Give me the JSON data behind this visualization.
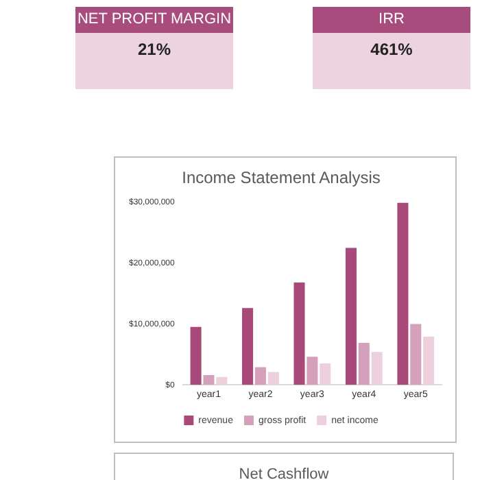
{
  "chart_data": [
    {
      "type": "other",
      "title": "NET PROFIT MARGIN",
      "annotations": [
        "21%"
      ]
    },
    {
      "type": "other",
      "title": "IRR",
      "annotations": [
        "461%"
      ]
    },
    {
      "type": "bar",
      "title": "Income Statement Analysis",
      "categories": [
        "year1",
        "year2",
        "year3",
        "year4",
        "year5"
      ],
      "series": [
        {
          "name": "revenue",
          "color": "#a8497a",
          "values": [
            9500000,
            12600000,
            16800000,
            22500000,
            29900000
          ]
        },
        {
          "name": "gross profit",
          "color": "#d4a0bb",
          "values": [
            1600000,
            2900000,
            4600000,
            6900000,
            10000000
          ]
        },
        {
          "name": "net income",
          "color": "#edd0dd",
          "values": [
            1300000,
            2100000,
            3500000,
            5400000,
            7900000
          ]
        }
      ],
      "ylim": [
        0,
        30000000
      ],
      "yticks": [
        {
          "value": 0,
          "label": "$0"
        },
        {
          "value": 10000000,
          "label": "$10,000,000"
        },
        {
          "value": 20000000,
          "label": "$20,000,000"
        },
        {
          "value": 30000000,
          "label": "$30,000,000"
        }
      ],
      "grid": false,
      "legend": "bottom"
    },
    {
      "type": "other",
      "title": "Net Cashflow"
    }
  ]
}
